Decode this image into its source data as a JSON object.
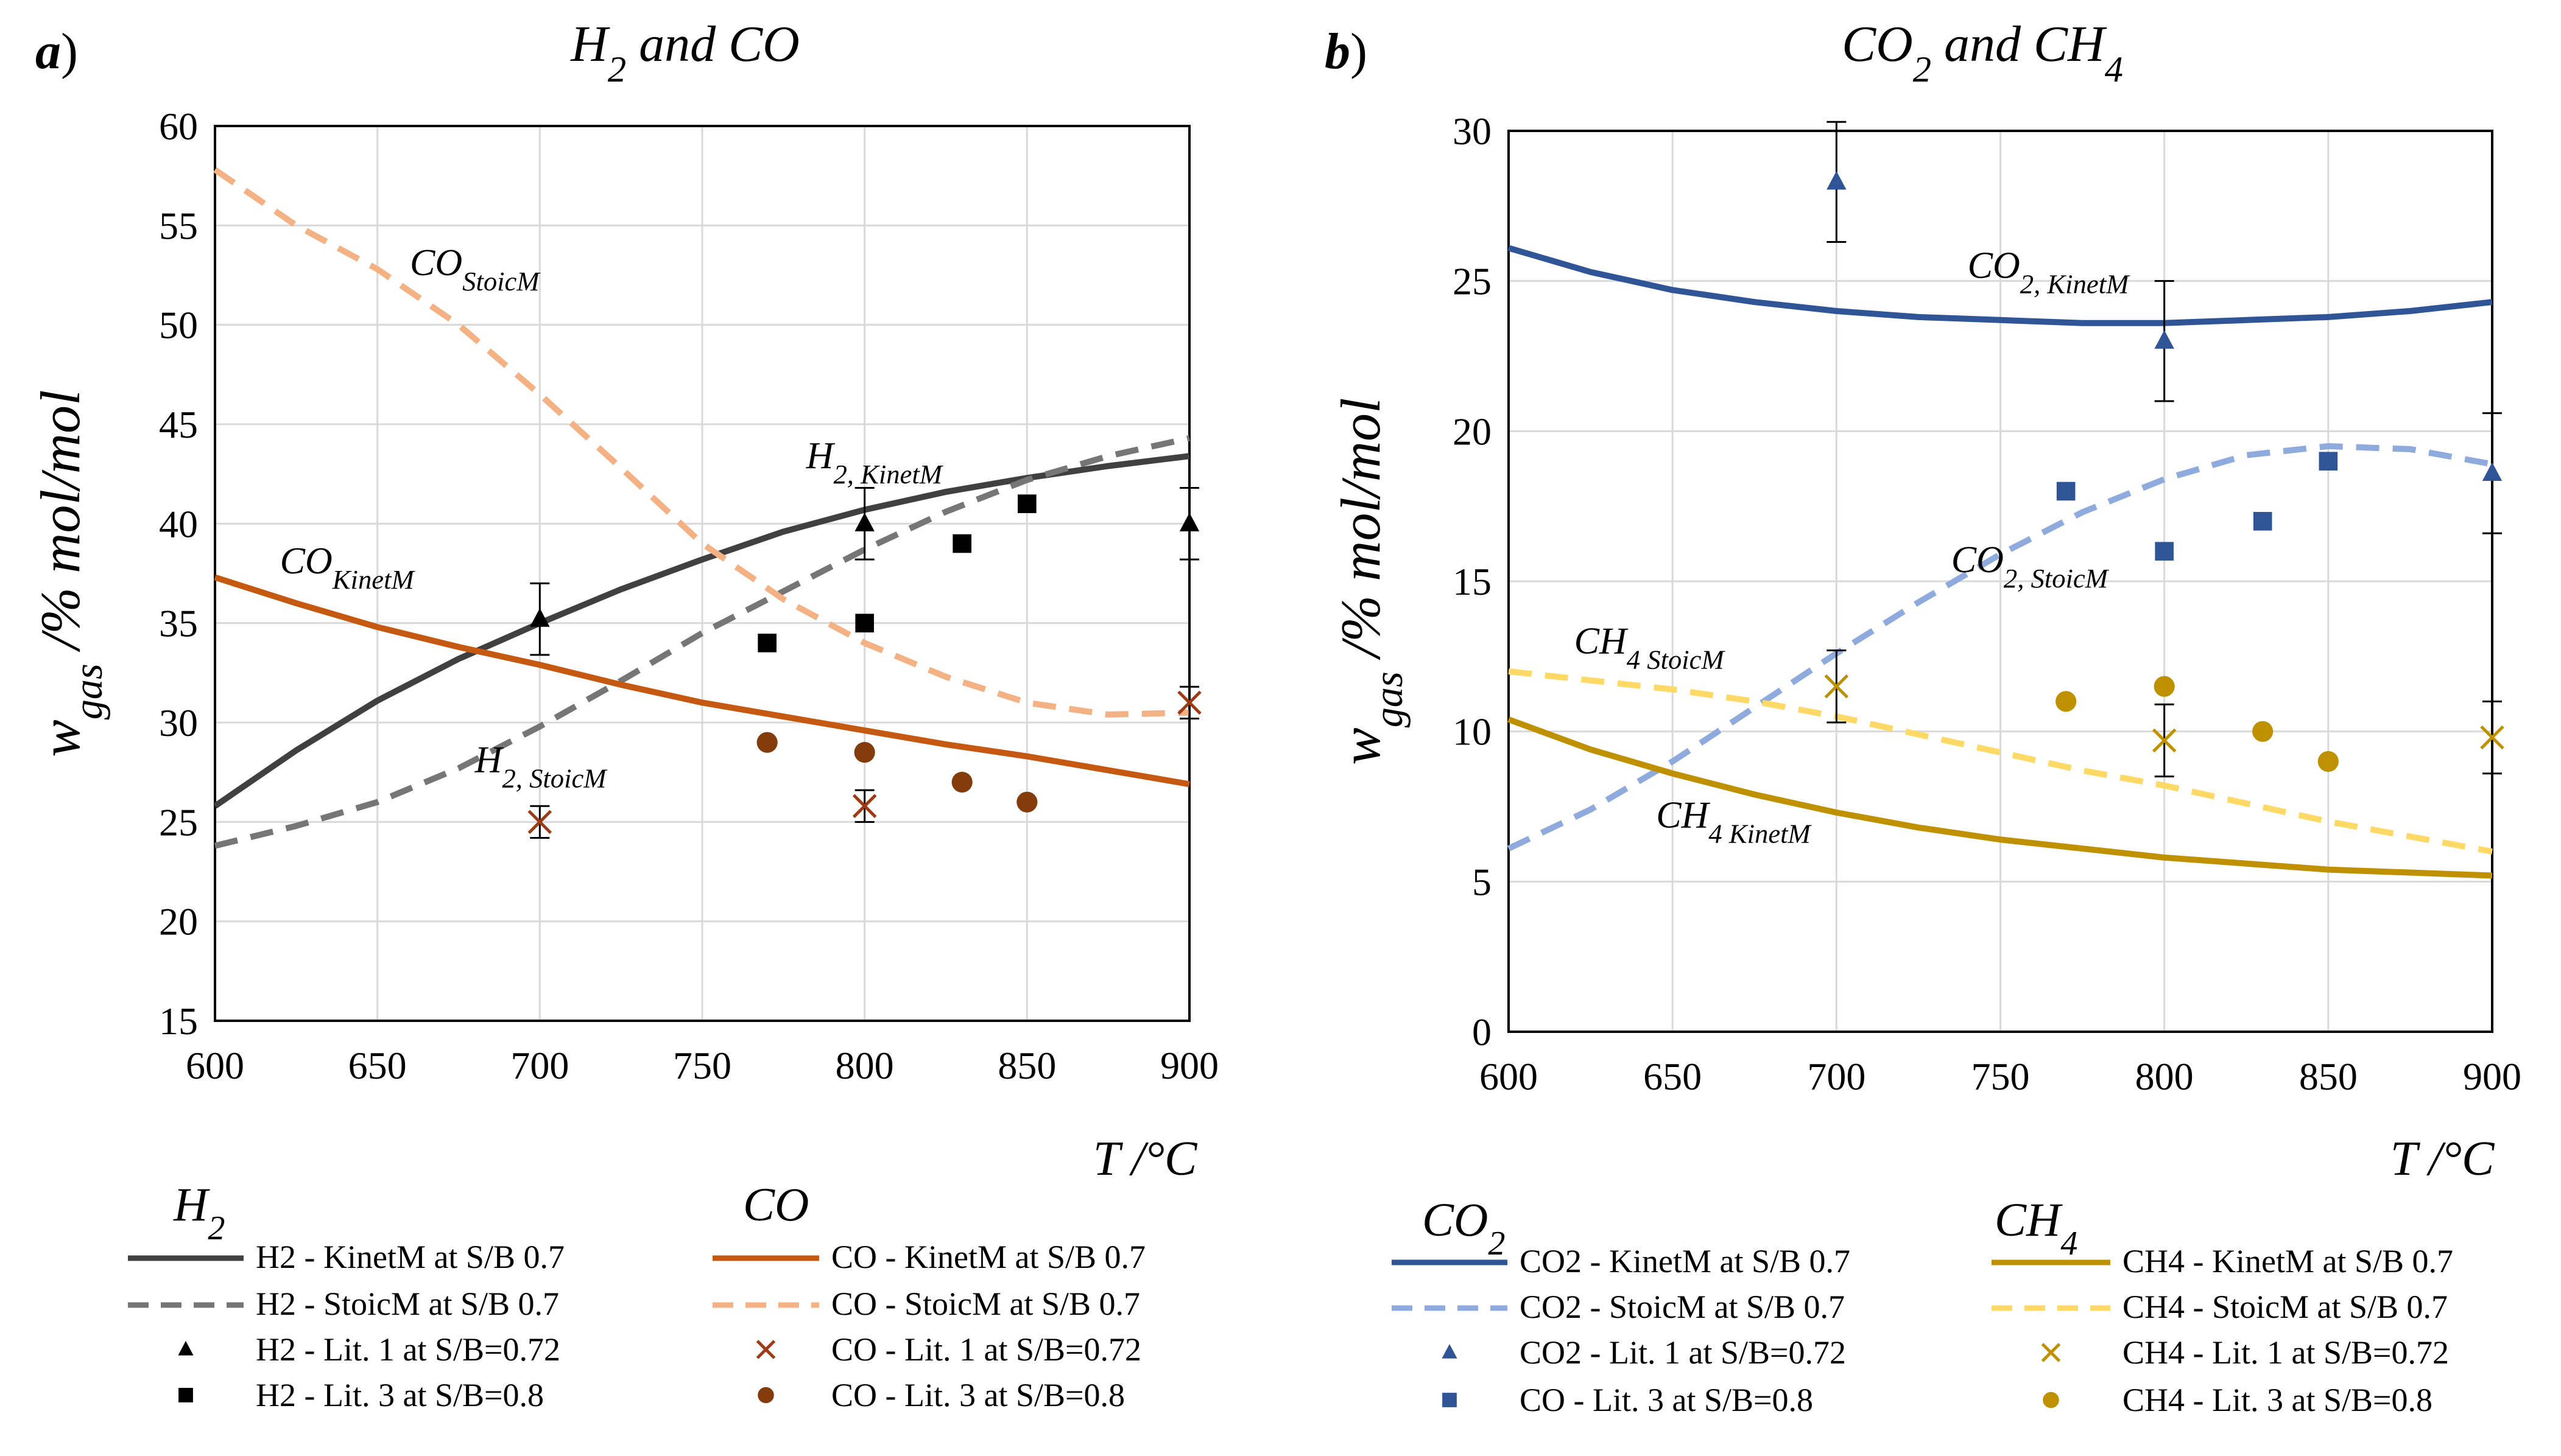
{
  "chart_data": [
    {
      "type": "line",
      "panel_label": "a",
      "title": "H",
      "title_sub": "2",
      "title_rest": " and CO",
      "xlabel": "T /°C",
      "ylabel": "w",
      "ylabel_sub": "gas",
      "ylabel_rest": " /% mol/mol",
      "xlim": [
        600,
        900
      ],
      "ylim": [
        15,
        60
      ],
      "xticks": [
        600,
        650,
        700,
        750,
        800,
        850,
        900
      ],
      "yticks": [
        15,
        20,
        25,
        30,
        35,
        40,
        45,
        50,
        55,
        60
      ],
      "grid": true,
      "series": [
        {
          "name": "H2 - KinetM at  S/B 0.7",
          "kind": "line",
          "style": "solid",
          "color": "#404040",
          "x": [
            600,
            625,
            650,
            675,
            700,
            725,
            750,
            775,
            800,
            825,
            850,
            875,
            900
          ],
          "y": [
            25.8,
            28.6,
            31.1,
            33.2,
            35.0,
            36.7,
            38.2,
            39.6,
            40.7,
            41.6,
            42.3,
            42.9,
            43.4
          ]
        },
        {
          "name": "H2 - StoicM at  S/B 0.7",
          "kind": "line",
          "style": "dashed",
          "color": "#767676",
          "x": [
            600,
            625,
            650,
            675,
            700,
            725,
            750,
            775,
            800,
            825,
            850,
            875,
            900
          ],
          "y": [
            23.8,
            24.8,
            26.0,
            27.7,
            29.8,
            32.1,
            34.5,
            36.6,
            38.7,
            40.6,
            42.2,
            43.4,
            44.3
          ]
        },
        {
          "name": "H2 - Lit. 1 at  S/B=0.72",
          "kind": "scatter",
          "marker": "triangle",
          "color": "#000000",
          "x": [
            700,
            800,
            900
          ],
          "y": [
            35.2,
            40.0,
            40.0
          ],
          "err": [
            1.8,
            1.8,
            1.8
          ]
        },
        {
          "name": "H2 - Lit. 3 at  S/B=0.8",
          "kind": "scatter",
          "marker": "square",
          "color": "#000000",
          "x": [
            770,
            800,
            830,
            850
          ],
          "y": [
            34.0,
            35.0,
            39.0,
            41.0
          ]
        },
        {
          "name": "CO - KinetM at  S/B 0.7",
          "kind": "line",
          "style": "solid",
          "color": "#c65911",
          "x": [
            600,
            625,
            650,
            675,
            700,
            725,
            750,
            775,
            800,
            825,
            850,
            875,
            900
          ],
          "y": [
            37.3,
            36.0,
            34.8,
            33.8,
            32.9,
            31.9,
            31.0,
            30.3,
            29.6,
            28.9,
            28.3,
            27.6,
            26.9
          ]
        },
        {
          "name": "CO - StoicM at  S/B 0.7",
          "kind": "line",
          "style": "dashed",
          "color": "#f4b183",
          "x": [
            600,
            625,
            650,
            675,
            700,
            725,
            750,
            775,
            800,
            825,
            850,
            875,
            900
          ],
          "y": [
            57.8,
            55.0,
            52.8,
            50.0,
            46.5,
            42.8,
            39.0,
            36.2,
            34.0,
            32.3,
            31.0,
            30.4,
            30.5
          ]
        },
        {
          "name": "CO - Lit. 1 at  S/B=0.72",
          "kind": "scatter",
          "marker": "x",
          "color": "#9e3b14",
          "x": [
            700,
            800,
            900
          ],
          "y": [
            25.0,
            25.8,
            31.0
          ],
          "err": [
            0.8,
            0.8,
            0.8
          ]
        },
        {
          "name": "CO - Lit. 3 at  S/B=0.8",
          "kind": "scatter",
          "marker": "circle",
          "color": "#843c0c",
          "x": [
            770,
            800,
            830,
            850
          ],
          "y": [
            29.0,
            28.5,
            27.0,
            26.0
          ]
        }
      ],
      "annotations": [
        {
          "base": "CO",
          "sub": "StoicM",
          "x": 660,
          "y": 52.5
        },
        {
          "base": "H",
          "sub": "2, KinetM",
          "x": 782,
          "y": 42.8
        },
        {
          "base": "CO",
          "sub": "KinetM",
          "x": 620,
          "y": 37.5
        },
        {
          "base": "H",
          "sub": "2, StoicM",
          "x": 680,
          "y": 27.5
        }
      ],
      "legend": {
        "groups": [
          {
            "heading": "H",
            "heading_sub": "2",
            "entries": [
              0,
              1,
              2,
              3
            ]
          },
          {
            "heading": "CO",
            "heading_sub": "",
            "entries": [
              4,
              5,
              6,
              7
            ]
          }
        ]
      }
    },
    {
      "type": "line",
      "panel_label": "b",
      "title": "CO",
      "title_sub": "2",
      "title_rest": " and CH",
      "title_sub2": "4",
      "xlabel": "T /°C",
      "ylabel": "w",
      "ylabel_sub": "gas",
      "ylabel_rest": " /% mol/mol",
      "xlim": [
        600,
        900
      ],
      "ylim": [
        0,
        30
      ],
      "xticks": [
        600,
        650,
        700,
        750,
        800,
        850,
        900
      ],
      "yticks": [
        0,
        5,
        10,
        15,
        20,
        25,
        30
      ],
      "grid": true,
      "series": [
        {
          "name": "CO2 - KinetM at  S/B 0.7",
          "kind": "line",
          "style": "solid",
          "color": "#2f5597",
          "x": [
            600,
            625,
            650,
            675,
            700,
            725,
            750,
            775,
            800,
            825,
            850,
            875,
            900
          ],
          "y": [
            26.1,
            25.3,
            24.7,
            24.3,
            24.0,
            23.8,
            23.7,
            23.6,
            23.6,
            23.7,
            23.8,
            24.0,
            24.3
          ]
        },
        {
          "name": "CO2 - StoicM at  S/B 0.7",
          "kind": "line",
          "style": "dashed",
          "color": "#8faadc",
          "x": [
            600,
            625,
            650,
            675,
            700,
            725,
            750,
            775,
            800,
            825,
            850,
            875,
            900
          ],
          "y": [
            6.1,
            7.4,
            9.0,
            10.8,
            12.6,
            14.3,
            15.9,
            17.3,
            18.4,
            19.2,
            19.5,
            19.4,
            18.9
          ]
        },
        {
          "name": "CO2 - Lit. 1 at  S/B=0.72",
          "kind": "scatter",
          "marker": "triangle",
          "color": "#2f5597",
          "x": [
            700,
            800,
            900
          ],
          "y": [
            28.3,
            23.0,
            18.6
          ],
          "err": [
            2.0,
            2.0,
            2.0
          ]
        },
        {
          "name": "CO - Lit. 3 at  S/B=0.8",
          "kind": "scatter",
          "marker": "square",
          "color": "#2f5597",
          "x": [
            770,
            800,
            830,
            850
          ],
          "y": [
            18.0,
            16.0,
            17.0,
            19.0
          ]
        },
        {
          "name": "CH4 - KinetM at  S/B 0.7",
          "kind": "line",
          "style": "solid",
          "color": "#bf9000",
          "x": [
            600,
            625,
            650,
            675,
            700,
            725,
            750,
            775,
            800,
            825,
            850,
            875,
            900
          ],
          "y": [
            10.4,
            9.4,
            8.6,
            7.9,
            7.3,
            6.8,
            6.4,
            6.1,
            5.8,
            5.6,
            5.4,
            5.3,
            5.2
          ]
        },
        {
          "name": "CH4 - StoicM at  S/B 0.7",
          "kind": "line",
          "style": "dashed",
          "color": "#ffd966",
          "x": [
            600,
            625,
            650,
            675,
            700,
            725,
            750,
            775,
            800,
            825,
            850,
            875,
            900
          ],
          "y": [
            12.0,
            11.7,
            11.4,
            11.0,
            10.5,
            9.9,
            9.3,
            8.7,
            8.2,
            7.6,
            7.0,
            6.5,
            6.0
          ]
        },
        {
          "name": "CH4 - Lit. 1 at  S/B=0.72",
          "kind": "scatter",
          "marker": "x",
          "color": "#bf9000",
          "x": [
            700,
            800,
            900
          ],
          "y": [
            11.5,
            9.7,
            9.8
          ],
          "err": [
            1.2,
            1.2,
            1.2
          ]
        },
        {
          "name": "CH4 - Lit. 3 at  S/B=0.8",
          "kind": "scatter",
          "marker": "circle",
          "color": "#bf9000",
          "x": [
            770,
            800,
            830,
            850
          ],
          "y": [
            11.0,
            11.5,
            10.0,
            9.0
          ]
        }
      ],
      "annotations": [
        {
          "base": "CO",
          "sub": "2, KinetM",
          "x": 740,
          "y": 25.1
        },
        {
          "base": "CO",
          "sub": "2, StoicM",
          "x": 735,
          "y": 15.3
        },
        {
          "base": "CH",
          "sub": "4 StoicM",
          "x": 620,
          "y": 12.6
        },
        {
          "base": "CH",
          "sub": "4 KinetM",
          "x": 645,
          "y": 6.8
        }
      ],
      "legend": {
        "groups": [
          {
            "heading": "CO",
            "heading_sub": "2",
            "entries": [
              0,
              1,
              2,
              3
            ]
          },
          {
            "heading": "CH",
            "heading_sub": "4",
            "entries": [
              4,
              5,
              6,
              7
            ]
          }
        ]
      }
    }
  ]
}
